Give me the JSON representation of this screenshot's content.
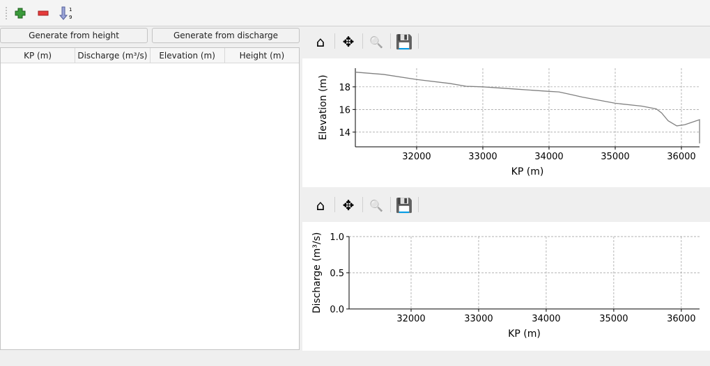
{
  "toolbar": {
    "icons": [
      "add-icon",
      "remove-icon",
      "sort-icon"
    ],
    "sort_label_top": "1",
    "sort_label_bottom": "9"
  },
  "buttons": {
    "from_height": "Generate from height",
    "from_discharge": "Generate from discharge"
  },
  "table": {
    "columns": [
      "KP (m)",
      "Discharge (m³/s)",
      "Elevation (m)",
      "Height (m)"
    ],
    "rows": []
  },
  "nav_toolbar": {
    "icons": [
      "home-icon",
      "pan-icon",
      "zoom-icon",
      "save-icon"
    ]
  },
  "chart_data": [
    {
      "type": "line",
      "xlabel": "KP (m)",
      "ylabel": "Elevation (m)",
      "xlim": [
        31074,
        36274
      ],
      "ylim": [
        12.7,
        19.65
      ],
      "grid": true,
      "xticks": [
        32000,
        33000,
        34000,
        35000,
        36000
      ],
      "yticks": [
        14,
        16,
        18
      ],
      "line_color": "#808080",
      "x": [
        31074,
        31500,
        32000,
        32500,
        32750,
        33000,
        33500,
        34000,
        34150,
        34350,
        34500,
        35000,
        35400,
        35620,
        35700,
        35800,
        35930,
        36050,
        36274,
        36274
      ],
      "y": [
        19.3,
        19.1,
        18.65,
        18.3,
        18.05,
        18.0,
        17.8,
        17.6,
        17.55,
        17.3,
        17.1,
        16.55,
        16.3,
        16.05,
        15.7,
        15.0,
        14.55,
        14.65,
        15.1,
        13.0
      ]
    },
    {
      "type": "line",
      "xlabel": "KP (m)",
      "ylabel": "Discharge (m³/s)",
      "xlim": [
        31082,
        36270
      ],
      "ylim": [
        0,
        1
      ],
      "grid": true,
      "xticks": [
        32000,
        33000,
        34000,
        35000,
        36000
      ],
      "yticks": [
        "0.0",
        "0.5",
        "1.0"
      ],
      "x": [],
      "y": []
    }
  ]
}
